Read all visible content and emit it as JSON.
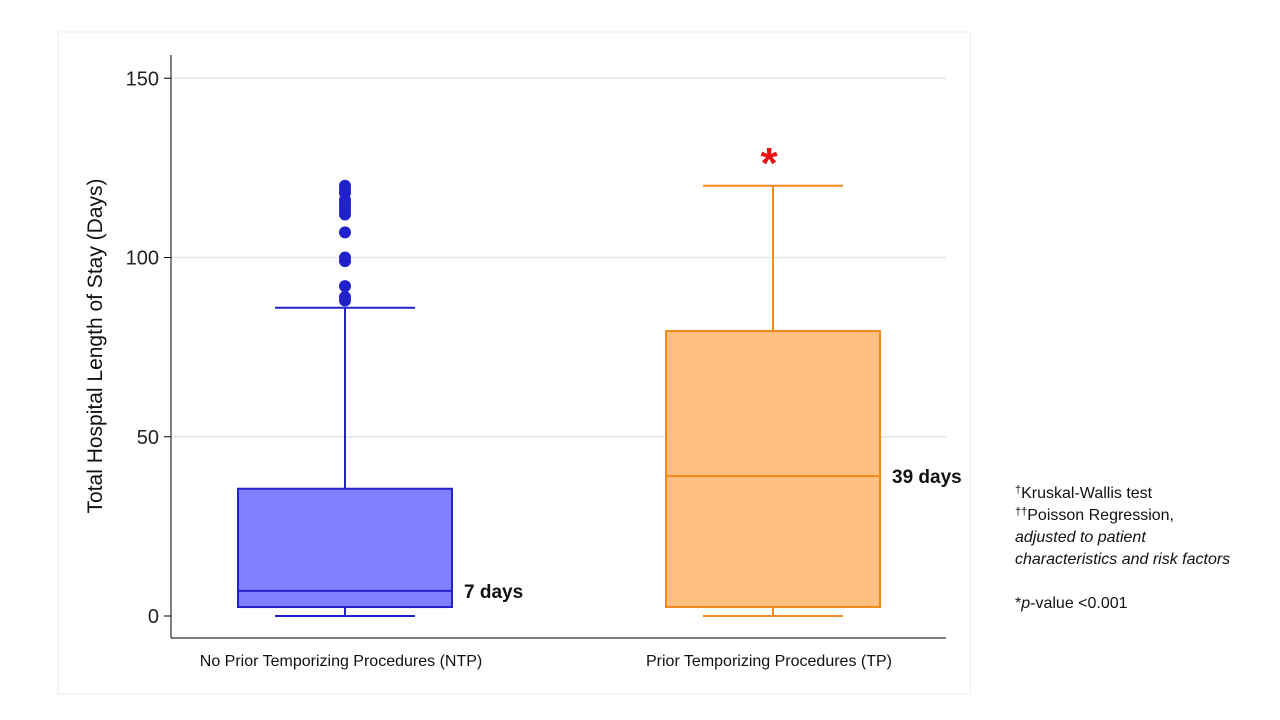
{
  "chart_data": {
    "type": "box",
    "ylabel": "Total Hospital Length of Stay (Days)",
    "xlabel": "",
    "ylim": [
      0,
      155
    ],
    "y_ticks": [
      0,
      50,
      100,
      150
    ],
    "grid": true,
    "categories": [
      "No Prior Temporizing Procedures (NTP)",
      "Prior Temporizing Procedures (TP)"
    ],
    "boxes": [
      {
        "category": "No Prior Temporizing Procedures (NTP)",
        "min": 0,
        "q1": 2.5,
        "median": 7,
        "q3": 35.5,
        "max": 86,
        "outliers": [
          88,
          89,
          92,
          99,
          100,
          107,
          112,
          113,
          114,
          115,
          116,
          118,
          119,
          120
        ],
        "median_label": "7 days",
        "color": "#2222cc",
        "fill": "#8080ff"
      },
      {
        "category": "Prior Temporizing Procedures (TP)",
        "min": 0,
        "q1": 2.5,
        "median": 39,
        "q3": 79.5,
        "max": 120,
        "outliers": [],
        "median_label": "39 days",
        "color": "#f08a1c",
        "fill": "#ffbf80",
        "significance_marker": "*"
      }
    ]
  },
  "notes": {
    "line1_mark": "†",
    "line1_text": "Kruskal-Wallis test",
    "line2_mark": "††",
    "line2_text": "Poisson Regression,",
    "line3_text": "adjusted to patient characteristics and risk factors",
    "pvalue_star": "*",
    "pvalue_p": "p",
    "pvalue_rest": "-value <0.001"
  },
  "colors": {
    "grid": "#dfe8ec",
    "axis": "#000000",
    "panel_border": "#e8eef0"
  }
}
